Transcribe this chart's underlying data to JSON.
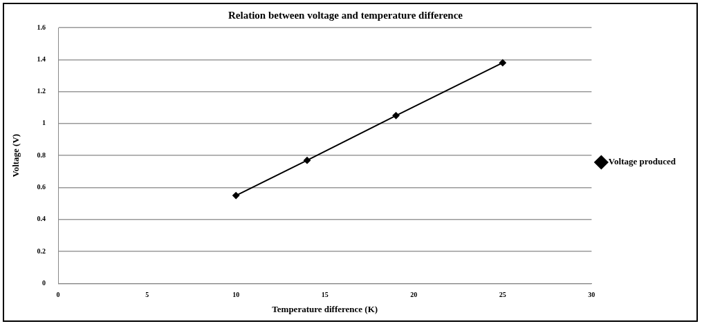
{
  "chart_data": {
    "type": "line",
    "title": "Relation between voltage and temperature difference",
    "xlabel": "Temperature difference (K)",
    "ylabel": "Voltage (V)",
    "x": [
      10,
      14,
      19,
      25
    ],
    "series": [
      {
        "name": "Voltage produced",
        "color": "#000000",
        "values": [
          0.55,
          0.77,
          1.05,
          1.38
        ]
      }
    ],
    "xlim": [
      0,
      30
    ],
    "xticks": [
      0,
      5,
      10,
      15,
      20,
      25,
      30
    ],
    "ylim": [
      0,
      1.6
    ],
    "yticks": [
      0,
      0.2,
      0.4,
      0.6,
      0.8,
      1,
      1.2,
      1.4,
      1.6
    ],
    "grid": "y",
    "legend": "right",
    "marker": "diamond",
    "line_style": "solid"
  }
}
